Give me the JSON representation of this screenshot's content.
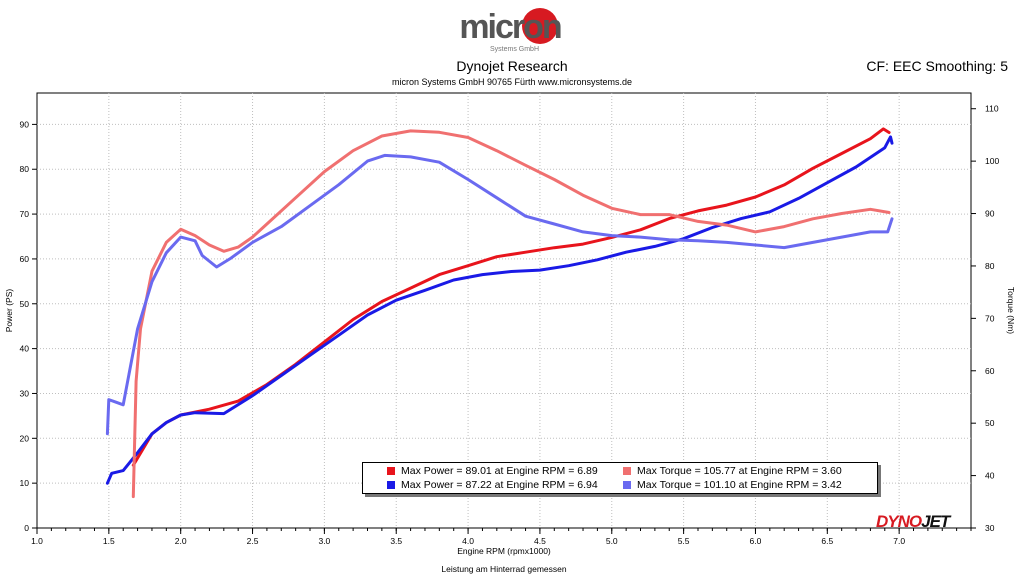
{
  "header": {
    "logo_text": "micron",
    "logo_subtext": "Systems GmbH",
    "title": "Dynojet Research",
    "subtitle": "micron Systems GmbH  90765 Fürth www.micronsystems.de",
    "cf_text": "CF: EEC Smoothing: 5"
  },
  "footer": {
    "caption": "Leistung am Hinterrad gemessen",
    "brand": "DYNOJET"
  },
  "colors": {
    "power1": "#e8141c",
    "power2": "#1a1ae6",
    "torque1": "#f07070",
    "torque2": "#6a6af0"
  },
  "legend": [
    {
      "label": "Max Power = 89.01 at Engine RPM = 6.89",
      "color": "#e8141c"
    },
    {
      "label": "Max Power = 87.22 at Engine RPM = 6.94",
      "color": "#1a1ae6"
    },
    {
      "label": "Max Torque = 105.77 at Engine RPM = 3.60",
      "color": "#f07070"
    },
    {
      "label": "Max Torque = 101.10 at Engine RPM = 3.42",
      "color": "#6a6af0"
    }
  ],
  "chart_data": {
    "type": "line",
    "title": "Dynojet Research",
    "xlabel": "Engine RPM (rpmx1000)",
    "ylabel": "Power (PS)",
    "y2label": "Torque (Nm)",
    "xlim": [
      1.0,
      7.5
    ],
    "ylim": [
      0,
      97
    ],
    "y2lim": [
      30,
      113
    ],
    "xticks": [
      "1.0",
      "1.5",
      "2.0",
      "2.5",
      "3.0",
      "3.5",
      "4.0",
      "4.5",
      "5.0",
      "5.5",
      "6.0",
      "6.5",
      "7.0"
    ],
    "yticks": [
      "0",
      "10",
      "20",
      "30",
      "40",
      "50",
      "60",
      "70",
      "80",
      "90"
    ],
    "y2ticks": [
      "30",
      "40",
      "50",
      "60",
      "70",
      "80",
      "90",
      "100",
      "110"
    ],
    "grid": true,
    "series": [
      {
        "name": "",
        "axis": "left",
        "color": "#e8141c",
        "x": [
          1.67,
          1.8,
          1.9,
          2.0,
          2.2,
          2.4,
          2.6,
          2.8,
          3.0,
          3.2,
          3.4,
          3.6,
          3.8,
          4.0,
          4.2,
          4.4,
          4.6,
          4.8,
          5.0,
          5.2,
          5.4,
          5.6,
          5.8,
          6.0,
          6.2,
          6.4,
          6.6,
          6.8,
          6.89,
          6.93
        ],
        "y": [
          14,
          21,
          23.5,
          25.2,
          26.5,
          28.3,
          32,
          36.5,
          41.5,
          46.5,
          50.5,
          53.5,
          56.5,
          58.5,
          60.5,
          61.5,
          62.5,
          63.3,
          64.8,
          66.5,
          69,
          70.7,
          72,
          73.8,
          76.5,
          80.2,
          83.5,
          86.8,
          89.0,
          88.2
        ]
      },
      {
        "name": "",
        "axis": "left",
        "color": "#1a1ae6",
        "x": [
          1.49,
          1.52,
          1.6,
          1.7,
          1.8,
          1.9,
          2.0,
          2.1,
          2.3,
          2.5,
          2.7,
          2.9,
          3.1,
          3.3,
          3.5,
          3.7,
          3.9,
          4.1,
          4.3,
          4.5,
          4.7,
          4.9,
          5.1,
          5.3,
          5.5,
          5.7,
          5.9,
          6.1,
          6.3,
          6.5,
          6.7,
          6.9,
          6.94,
          6.95
        ],
        "y": [
          10,
          12.2,
          12.8,
          16.8,
          21,
          23.5,
          25.2,
          25.7,
          25.5,
          29.5,
          34,
          38.5,
          43,
          47.5,
          50.8,
          53,
          55.3,
          56.5,
          57.2,
          57.5,
          58.5,
          59.8,
          61.5,
          62.8,
          64.5,
          67,
          69,
          70.5,
          73.5,
          77,
          80.5,
          84.8,
          87.2,
          85.8
        ]
      },
      {
        "name": "",
        "axis": "right",
        "color": "#f07070",
        "x": [
          1.67,
          1.69,
          1.72,
          1.8,
          1.9,
          2.0,
          2.1,
          2.2,
          2.3,
          2.4,
          2.5,
          2.6,
          2.8,
          3.0,
          3.2,
          3.4,
          3.6,
          3.8,
          4.0,
          4.2,
          4.4,
          4.6,
          4.8,
          5.0,
          5.2,
          5.4,
          5.6,
          5.8,
          6.0,
          6.2,
          6.4,
          6.6,
          6.8,
          6.93
        ],
        "y": [
          36,
          58,
          68,
          79,
          84.5,
          87,
          85.8,
          84,
          82.8,
          83.6,
          85.5,
          88,
          93,
          98,
          102,
          104.8,
          105.77,
          105.5,
          104.5,
          102,
          99.2,
          96.5,
          93.5,
          91,
          89.8,
          89.8,
          88.5,
          87.8,
          86.5,
          87.5,
          89,
          90,
          90.8,
          90.2
        ]
      },
      {
        "name": "",
        "axis": "right",
        "color": "#6a6af0",
        "x": [
          1.49,
          1.5,
          1.55,
          1.6,
          1.7,
          1.8,
          1.9,
          2.0,
          2.1,
          2.15,
          2.25,
          2.35,
          2.5,
          2.7,
          2.9,
          3.1,
          3.3,
          3.42,
          3.6,
          3.8,
          4.0,
          4.2,
          4.4,
          4.6,
          4.8,
          5.0,
          5.2,
          5.4,
          5.6,
          5.8,
          6.0,
          6.2,
          6.4,
          6.6,
          6.8,
          6.92,
          6.95
        ],
        "y": [
          48,
          54.5,
          54,
          53.5,
          68,
          77,
          82.5,
          85.5,
          84.8,
          82,
          79.8,
          81.5,
          84.5,
          87.5,
          91.5,
          95.5,
          100,
          101.1,
          100.8,
          99.8,
          96.5,
          93,
          89.5,
          88,
          86.5,
          85.8,
          85.5,
          85,
          84.8,
          84.5,
          84,
          83.5,
          84.5,
          85.5,
          86.5,
          86.5,
          89
        ]
      }
    ]
  }
}
